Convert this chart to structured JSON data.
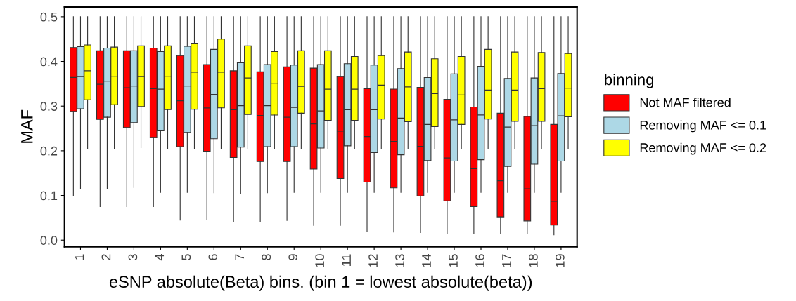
{
  "chart_data": {
    "type": "box",
    "xlabel": "eSNP absolute(Beta) bins. (bin 1 = lowest absolute(beta))",
    "ylabel": "MAF",
    "legend_title": "binning",
    "legend": "right",
    "categories": [
      "1",
      "2",
      "3",
      "4",
      "5",
      "6",
      "7",
      "8",
      "9",
      "10",
      "11",
      "12",
      "13",
      "14",
      "15",
      "16",
      "17",
      "18",
      "19"
    ],
    "ylim": [
      -0.015,
      0.522
    ],
    "yticks": [
      {
        "value": 0,
        "label": "0.0"
      },
      0.1,
      0.2,
      0.3,
      0.4,
      0.5
    ],
    "series": [
      {
        "name": "Not MAF filtered",
        "color": "#ff0000",
        "boxes": [
          {
            "low": 0.099,
            "q1": 0.288,
            "median": 0.364,
            "q3": 0.431,
            "high": 0.5
          },
          {
            "low": 0.075,
            "q1": 0.27,
            "median": 0.349,
            "q3": 0.424,
            "high": 0.5
          },
          {
            "low": 0.075,
            "q1": 0.252,
            "median": 0.341,
            "q3": 0.424,
            "high": 0.5
          },
          {
            "low": 0.075,
            "q1": 0.23,
            "median": 0.339,
            "q3": 0.43,
            "high": 0.5
          },
          {
            "low": 0.045,
            "q1": 0.209,
            "median": 0.312,
            "q3": 0.413,
            "high": 0.5
          },
          {
            "low": 0.046,
            "q1": 0.199,
            "median": 0.296,
            "q3": 0.393,
            "high": 0.5
          },
          {
            "low": 0.041,
            "q1": 0.185,
            "median": 0.292,
            "q3": 0.379,
            "high": 0.5
          },
          {
            "low": 0.041,
            "q1": 0.176,
            "median": 0.279,
            "q3": 0.377,
            "high": 0.5
          },
          {
            "low": 0.044,
            "q1": 0.176,
            "median": 0.275,
            "q3": 0.388,
            "high": 0.5
          },
          {
            "low": 0.033,
            "q1": 0.159,
            "median": 0.26,
            "q3": 0.385,
            "high": 0.5
          },
          {
            "low": 0.033,
            "q1": 0.138,
            "median": 0.244,
            "q3": 0.366,
            "high": 0.5
          },
          {
            "low": 0.02,
            "q1": 0.13,
            "median": 0.232,
            "q3": 0.339,
            "high": 0.5
          },
          {
            "low": 0.018,
            "q1": 0.117,
            "median": 0.221,
            "q3": 0.338,
            "high": 0.5
          },
          {
            "low": 0.017,
            "q1": 0.099,
            "median": 0.21,
            "q3": 0.342,
            "high": 0.5
          },
          {
            "low": 0.015,
            "q1": 0.088,
            "median": 0.184,
            "q3": 0.315,
            "high": 0.5
          },
          {
            "low": 0.015,
            "q1": 0.075,
            "median": 0.16,
            "q3": 0.298,
            "high": 0.5
          },
          {
            "low": 0.014,
            "q1": 0.052,
            "median": 0.133,
            "q3": 0.284,
            "high": 0.5
          },
          {
            "low": 0.015,
            "q1": 0.043,
            "median": 0.115,
            "q3": 0.277,
            "high": 0.5
          },
          {
            "low": 0.012,
            "q1": 0.034,
            "median": 0.087,
            "q3": 0.259,
            "high": 0.5
          }
        ]
      },
      {
        "name": "Removing MAF <= 0.1",
        "color": "#add8e6",
        "boxes": [
          {
            "low": 0.115,
            "q1": 0.294,
            "median": 0.366,
            "q3": 0.433,
            "high": 0.5
          },
          {
            "low": 0.115,
            "q1": 0.275,
            "median": 0.356,
            "q3": 0.43,
            "high": 0.5
          },
          {
            "low": 0.118,
            "q1": 0.263,
            "median": 0.345,
            "q3": 0.424,
            "high": 0.5
          },
          {
            "low": 0.107,
            "q1": 0.246,
            "median": 0.338,
            "q3": 0.422,
            "high": 0.5
          },
          {
            "low": 0.107,
            "q1": 0.241,
            "median": 0.345,
            "q3": 0.434,
            "high": 0.5
          },
          {
            "low": 0.106,
            "q1": 0.227,
            "median": 0.326,
            "q3": 0.427,
            "high": 0.5
          },
          {
            "low": 0.105,
            "q1": 0.208,
            "median": 0.301,
            "q3": 0.397,
            "high": 0.5
          },
          {
            "low": 0.106,
            "q1": 0.209,
            "median": 0.301,
            "q3": 0.393,
            "high": 0.5
          },
          {
            "low": 0.107,
            "q1": 0.209,
            "median": 0.297,
            "q3": 0.392,
            "high": 0.5
          },
          {
            "low": 0.107,
            "q1": 0.206,
            "median": 0.289,
            "q3": 0.393,
            "high": 0.5
          },
          {
            "low": 0.107,
            "q1": 0.211,
            "median": 0.292,
            "q3": 0.395,
            "high": 0.5
          },
          {
            "low": 0.107,
            "q1": 0.196,
            "median": 0.292,
            "q3": 0.392,
            "high": 0.5
          },
          {
            "low": 0.107,
            "q1": 0.191,
            "median": 0.273,
            "q3": 0.384,
            "high": 0.5
          },
          {
            "low": 0.107,
            "q1": 0.178,
            "median": 0.259,
            "q3": 0.364,
            "high": 0.5
          },
          {
            "low": 0.107,
            "q1": 0.177,
            "median": 0.269,
            "q3": 0.372,
            "high": 0.5
          },
          {
            "low": 0.107,
            "q1": 0.18,
            "median": 0.28,
            "q3": 0.389,
            "high": 0.5
          },
          {
            "low": 0.107,
            "q1": 0.165,
            "median": 0.253,
            "q3": 0.362,
            "high": 0.5
          },
          {
            "low": 0.107,
            "q1": 0.17,
            "median": 0.256,
            "q3": 0.363,
            "high": 0.5
          },
          {
            "low": 0.107,
            "q1": 0.177,
            "median": 0.278,
            "q3": 0.373,
            "high": 0.5
          }
        ]
      },
      {
        "name": "Removing MAF <= 0.2",
        "color": "#ffff00",
        "boxes": [
          {
            "low": 0.205,
            "q1": 0.314,
            "median": 0.379,
            "q3": 0.437,
            "high": 0.5
          },
          {
            "low": 0.205,
            "q1": 0.303,
            "median": 0.367,
            "q3": 0.432,
            "high": 0.5
          },
          {
            "low": 0.207,
            "q1": 0.299,
            "median": 0.366,
            "q3": 0.435,
            "high": 0.5
          },
          {
            "low": 0.204,
            "q1": 0.292,
            "median": 0.367,
            "q3": 0.435,
            "high": 0.5
          },
          {
            "low": 0.204,
            "q1": 0.293,
            "median": 0.376,
            "q3": 0.441,
            "high": 0.5
          },
          {
            "low": 0.204,
            "q1": 0.296,
            "median": 0.376,
            "q3": 0.45,
            "high": 0.5
          },
          {
            "low": 0.204,
            "q1": 0.281,
            "median": 0.363,
            "q3": 0.435,
            "high": 0.5
          },
          {
            "low": 0.204,
            "q1": 0.28,
            "median": 0.351,
            "q3": 0.422,
            "high": 0.5
          },
          {
            "low": 0.204,
            "q1": 0.284,
            "median": 0.344,
            "q3": 0.424,
            "high": 0.5
          },
          {
            "low": 0.204,
            "q1": 0.268,
            "median": 0.338,
            "q3": 0.424,
            "high": 0.5
          },
          {
            "low": 0.204,
            "q1": 0.268,
            "median": 0.338,
            "q3": 0.411,
            "high": 0.5
          },
          {
            "low": 0.205,
            "q1": 0.271,
            "median": 0.347,
            "q3": 0.413,
            "high": 0.5
          },
          {
            "low": 0.204,
            "q1": 0.265,
            "median": 0.343,
            "q3": 0.421,
            "high": 0.5
          },
          {
            "low": 0.204,
            "q1": 0.254,
            "median": 0.328,
            "q3": 0.406,
            "high": 0.5
          },
          {
            "low": 0.204,
            "q1": 0.259,
            "median": 0.325,
            "q3": 0.411,
            "high": 0.5
          },
          {
            "low": 0.204,
            "q1": 0.271,
            "median": 0.336,
            "q3": 0.427,
            "high": 0.5
          },
          {
            "low": 0.204,
            "q1": 0.266,
            "median": 0.336,
            "q3": 0.421,
            "high": 0.5
          },
          {
            "low": 0.204,
            "q1": 0.266,
            "median": 0.339,
            "q3": 0.42,
            "high": 0.5
          },
          {
            "low": 0.204,
            "q1": 0.276,
            "median": 0.34,
            "q3": 0.418,
            "high": 0.5
          }
        ]
      }
    ]
  }
}
